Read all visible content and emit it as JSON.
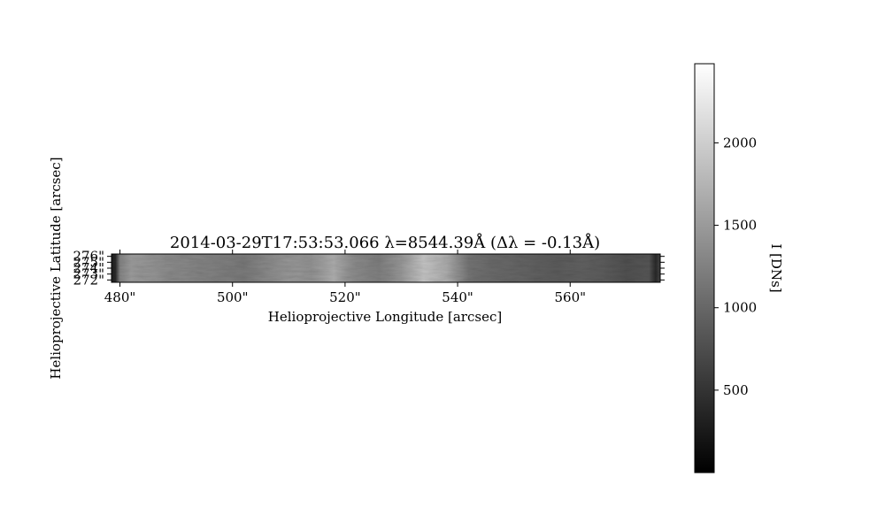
{
  "chart_data": {
    "type": "heatmap",
    "title": "2014-03-29T17:53:53.066 λ=8544.39Å (Δλ = -0.13Å)",
    "xlabel": "Helioprojective Longitude [arcsec]",
    "ylabel": "Helioprojective Latitude [arcsec]",
    "x_ticks": [
      "480\"",
      "500\"",
      "520\"",
      "540\"",
      "560\""
    ],
    "x_tick_values": [
      480,
      500,
      520,
      540,
      560
    ],
    "xlim": [
      478.5,
      576
    ],
    "y_ticks": [
      "272\"",
      "273\"",
      "274\"",
      "275\"",
      "276\""
    ],
    "y_tick_values": [
      272,
      273,
      274,
      275,
      276
    ],
    "ylim": [
      271.6,
      276.4
    ],
    "colormap": "gray",
    "colorbar": {
      "label": "I [DNs]",
      "ticks": [
        "500",
        "1000",
        "1500",
        "2000"
      ],
      "tick_values": [
        500,
        1000,
        1500,
        2000
      ],
      "range": [
        0,
        2480
      ]
    },
    "intensity_profile": {
      "x": [
        478.5,
        479.2,
        480,
        482,
        486,
        490,
        494,
        498,
        502,
        506,
        510,
        514,
        518,
        522,
        526,
        530,
        534,
        538,
        542,
        546,
        550,
        554,
        558,
        562,
        566,
        570,
        574,
        575.2,
        576
      ],
      "values": [
        300,
        400,
        1300,
        1550,
        1450,
        1350,
        1300,
        1250,
        1200,
        1350,
        1500,
        1450,
        1700,
        1350,
        1250,
        1500,
        1950,
        1700,
        1150,
        1050,
        1000,
        950,
        900,
        950,
        900,
        800,
        850,
        400,
        700
      ]
    }
  }
}
